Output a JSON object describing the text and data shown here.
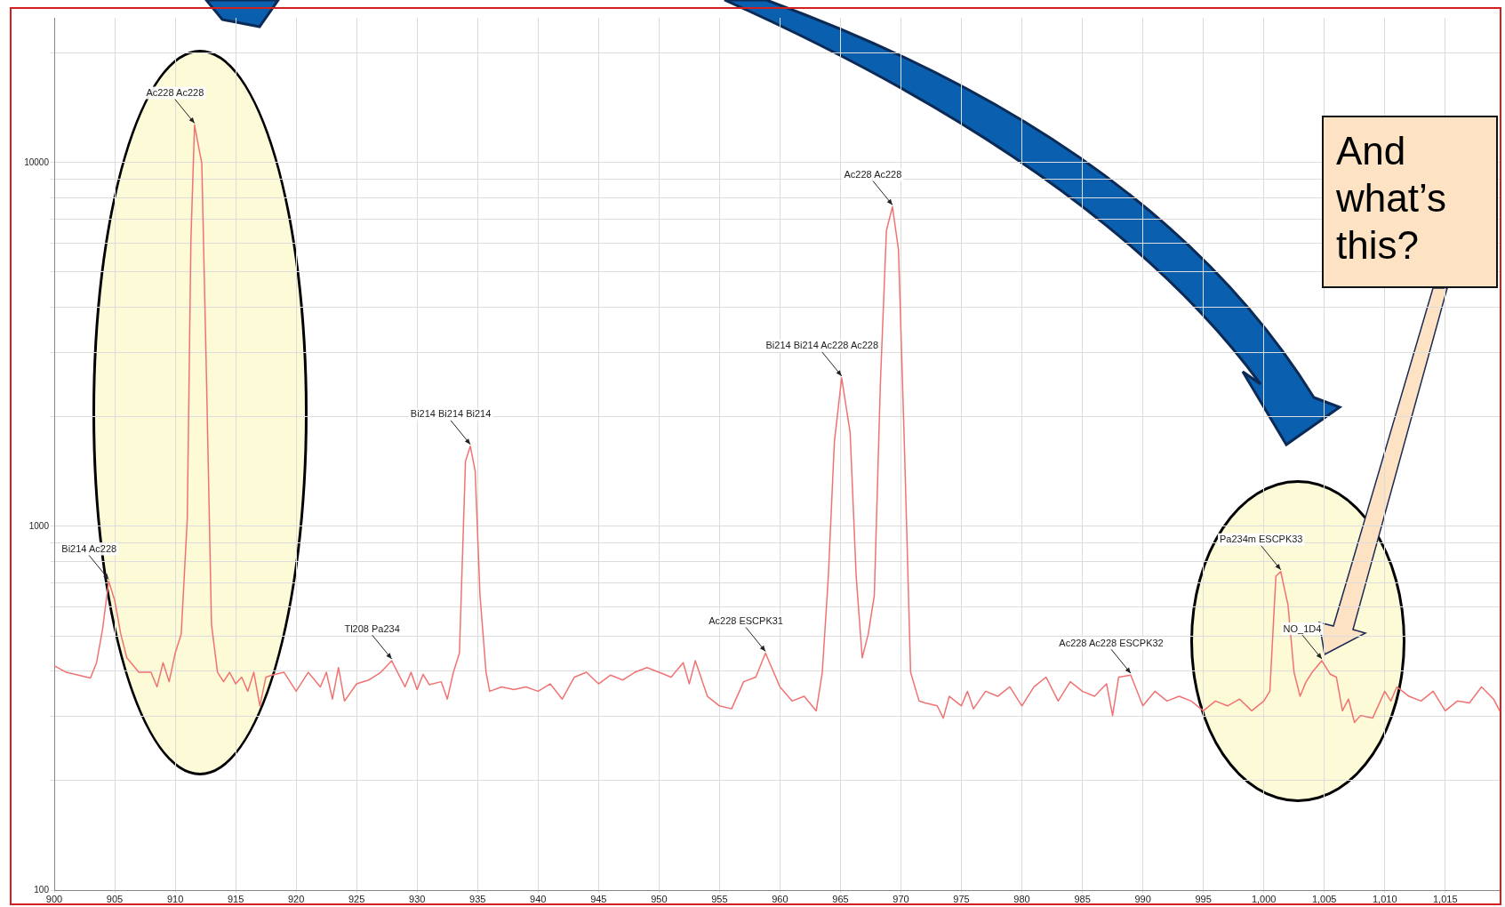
{
  "chart_data": {
    "type": "line",
    "x": [
      900,
      901,
      902,
      903,
      903.5,
      904,
      904.5,
      905,
      905.5,
      906,
      907,
      908,
      908.5,
      909,
      909.5,
      910,
      910.5,
      911,
      911.3,
      911.6,
      912.2,
      912.6,
      913,
      913.5,
      914,
      914.5,
      915,
      915.5,
      916,
      916.5,
      917,
      917.5,
      918,
      919,
      920,
      921,
      922,
      922.5,
      923,
      923.5,
      924,
      925,
      926,
      927,
      927.9,
      929,
      929.5,
      930,
      930.5,
      931,
      932,
      932.5,
      933,
      933.5,
      934,
      934.4,
      934.8,
      935.2,
      935.7,
      936,
      937,
      938,
      939,
      940,
      941,
      942,
      943,
      944,
      945,
      946,
      947,
      948,
      949,
      950,
      951,
      952,
      952.5,
      953,
      954,
      955,
      956,
      957,
      958,
      958.8,
      960,
      961,
      962,
      963,
      963.5,
      964,
      964.5,
      965.1,
      965.8,
      966.3,
      966.8,
      967.3,
      967.8,
      968.3,
      968.8,
      969.3,
      969.8,
      970.3,
      970.8,
      971.5,
      972,
      973,
      973.5,
      974,
      975,
      975.5,
      976,
      977,
      978,
      979,
      980,
      981,
      982,
      983,
      984,
      985,
      986,
      987,
      987.5,
      988,
      989,
      990,
      991,
      992,
      993,
      994,
      995,
      996,
      997,
      998,
      999,
      1000,
      1000.5,
      1001,
      1001.4,
      1002,
      1002.5,
      1003,
      1003.5,
      1004,
      1004.8,
      1005.5,
      1006,
      1006.5,
      1007,
      1007.5,
      1008,
      1009,
      1010,
      1010.5,
      1011,
      1012,
      1013,
      1014,
      1015,
      1016,
      1017,
      1018,
      1019,
      1019.5
    ],
    "series": [
      {
        "color": "#f07373",
        "values": [
          414,
          397,
          390,
          383,
          422,
          522,
          707,
          626,
          506,
          435,
          397,
          397,
          362,
          422,
          374,
          448,
          506,
          1050,
          6110,
          12680,
          9940,
          2460,
          538,
          397,
          374,
          397,
          369,
          385,
          352,
          397,
          321,
          385,
          390,
          397,
          352,
          397,
          362,
          397,
          335,
          409,
          331,
          369,
          378,
          397,
          427,
          362,
          397,
          356,
          392,
          367,
          374,
          335,
          397,
          448,
          1510,
          1660,
          1420,
          646,
          397,
          352,
          362,
          356,
          362,
          352,
          369,
          335,
          385,
          397,
          369,
          390,
          378,
          397,
          409,
          397,
          385,
          422,
          369,
          427,
          341,
          321,
          315,
          374,
          385,
          448,
          362,
          331,
          341,
          311,
          397,
          729,
          1710,
          2560,
          1810,
          729,
          435,
          506,
          646,
          2460,
          6500,
          7560,
          5750,
          1610,
          397,
          331,
          327,
          321,
          297,
          341,
          321,
          352,
          315,
          352,
          341,
          362,
          321,
          362,
          385,
          331,
          374,
          352,
          341,
          369,
          302,
          385,
          390,
          321,
          352,
          331,
          341,
          331,
          311,
          331,
          321,
          335,
          311,
          331,
          352,
          729,
          751,
          608,
          397,
          341,
          374,
          397,
          427,
          392,
          385,
          311,
          335,
          289,
          302,
          297,
          352,
          331,
          362,
          341,
          331,
          352,
          311,
          331,
          327,
          362,
          335,
          311
        ]
      }
    ],
    "xlim": [
      900,
      1019.5
    ],
    "xticks": [
      900,
      905,
      910,
      915,
      920,
      925,
      930,
      935,
      940,
      945,
      950,
      955,
      960,
      965,
      970,
      975,
      980,
      985,
      990,
      995,
      {
        "value": 1000,
        "label": "1,000"
      },
      {
        "value": 1005,
        "label": "1,005"
      },
      {
        "value": 1010,
        "label": "1,010"
      },
      {
        "value": 1015,
        "label": "1,015"
      }
    ],
    "ylim": [
      100,
      25000
    ],
    "yticks": [
      100,
      {
        "value": 200,
        "label": null
      },
      {
        "value": 300,
        "label": null
      },
      {
        "value": 400,
        "label": null
      },
      {
        "value": 500,
        "label": null
      },
      {
        "value": 600,
        "label": null
      },
      {
        "value": 700,
        "label": null
      },
      {
        "value": 800,
        "label": null
      },
      {
        "value": 900,
        "label": null
      },
      1000,
      {
        "value": 2000,
        "label": null
      },
      {
        "value": 3000,
        "label": null
      },
      {
        "value": 4000,
        "label": null
      },
      {
        "value": 5000,
        "label": null
      },
      {
        "value": 6000,
        "label": null
      },
      {
        "value": 7000,
        "label": null
      },
      {
        "value": 8000,
        "label": null
      },
      {
        "value": 9000,
        "label": null
      },
      10000,
      {
        "value": 20000,
        "label": null
      }
    ],
    "log": true,
    "grid": true,
    "marker": "none",
    "annotations": [
      {
        "text": "Bi214 Ac228",
        "x": 904.5,
        "y": 707
      },
      {
        "text": "Ac228 Ac228",
        "x": 911.6,
        "y": 12680
      },
      {
        "text": "Tl208 Pa234",
        "x": 927.9,
        "y": 427
      },
      {
        "text": "Bi214 Bi214 Bi214",
        "x": 934.4,
        "y": 1660
      },
      {
        "text": "Ac228 ESCPK31",
        "x": 958.8,
        "y": 448
      },
      {
        "text": "Bi214 Bi214 Ac228 Ac228",
        "x": 965.1,
        "y": 2560
      },
      {
        "text": "Ac228 Ac228",
        "x": 969.3,
        "y": 7560
      },
      {
        "text": "Ac228 Ac228 ESCPK32",
        "x": 989,
        "y": 390
      },
      {
        "text": "Pa234m ESCPK33",
        "x": 1001.4,
        "y": 751
      },
      {
        "text": "NO_1D4",
        "x": 1004.8,
        "y": 427
      },
      "And what’s this?"
    ]
  }
}
